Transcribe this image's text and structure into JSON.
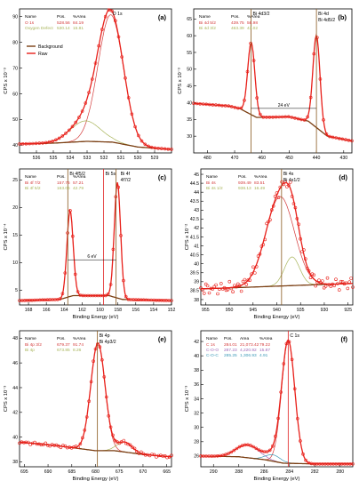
{
  "colors": {
    "raw": "#e8201a",
    "background": "#7a3e12",
    "fit_red": "#d43a3a",
    "fit_olive": "#a8b45a",
    "fit_purple": "#a06ab8",
    "fit_cyan": "#3e9ab8",
    "fit_blue": "#4060c0",
    "marker_dark": "#8a5a20",
    "marker_red": "#e02020",
    "axis": "#000000"
  },
  "chart_data": [
    {
      "id": "a",
      "type": "line",
      "panel_label": "(a)",
      "xlabel": "",
      "ylabel": "CPS x 10⁻³",
      "xlim": [
        537,
        528
      ],
      "ylim": [
        37,
        93
      ],
      "xticks": [
        536,
        535,
        534,
        533,
        532,
        531,
        530,
        529
      ],
      "yticks": [
        40,
        50,
        60,
        70,
        80,
        90
      ],
      "table": {
        "headers": [
          "Name",
          "Pos.",
          "%Area"
        ],
        "rows": [
          [
            "O 1s",
            "528.56",
            "84.19"
          ],
          [
            "Oxygen Defect",
            "530.14",
            "15.81"
          ]
        ],
        "row_colors": [
          "fit_red",
          "fit_olive"
        ]
      },
      "legend": [
        "Background",
        "Raw"
      ],
      "peak_labels": [
        {
          "x": 531.6,
          "text": "O 1s"
        }
      ],
      "background": [
        [
          537,
          40.5
        ],
        [
          535,
          40.8
        ],
        [
          533,
          41.5
        ],
        [
          531.5,
          41.2
        ],
        [
          530,
          39.3
        ],
        [
          528,
          38.4
        ]
      ],
      "components": [
        {
          "color": "fit_red",
          "center": 531.6,
          "sigma": 0.75,
          "amp": 49.5
        },
        {
          "color": "fit_olive",
          "center": 533.1,
          "sigma": 0.9,
          "amp": 8
        }
      ],
      "raw_points": 46,
      "markers": []
    },
    {
      "id": "b",
      "type": "line",
      "panel_label": "(b)",
      "xlabel": "",
      "ylabel": "CPS x 10⁻³",
      "xlim": [
        485,
        427
      ],
      "ylim": [
        25,
        68
      ],
      "xticks": [
        480,
        470,
        460,
        450,
        440,
        430
      ],
      "yticks": [
        30,
        35,
        40,
        45,
        50,
        55,
        60,
        65
      ],
      "table": {
        "headers": [
          "Name",
          "Pos.",
          "%Area"
        ],
        "rows": [
          [
            "Bi 4d 5/2",
            "439.75",
            "56.98"
          ],
          [
            "Bi 4d 3/2",
            "463.39",
            "43.02"
          ]
        ],
        "row_colors": [
          "fit_red",
          "fit_olive"
        ]
      },
      "legend": [],
      "peak_labels": [
        {
          "x": 464,
          "text": "Bi 4d3/2"
        },
        {
          "x": 440,
          "text": "Bi 4d"
        },
        {
          "x": 440,
          "text": "Bi 4d5/2"
        }
      ],
      "separation": {
        "x1": 464,
        "x2": 440,
        "y": 38.3,
        "text": "24 eV"
      },
      "background": [
        [
          485,
          39.8
        ],
        [
          472,
          39
        ],
        [
          468,
          38.2
        ],
        [
          462,
          35.6
        ],
        [
          450,
          35.8
        ],
        [
          443,
          34.5
        ],
        [
          436,
          30
        ],
        [
          427,
          28.6
        ]
      ],
      "components": [
        {
          "color": "fit_red",
          "center": 463.9,
          "sigma": 1.3,
          "amp": 21.5
        },
        {
          "color": "fit_red",
          "center": 440,
          "sigma": 1.3,
          "amp": 27.5
        }
      ],
      "raw_points": 50,
      "markers": [
        {
          "x": 464,
          "color": "marker_dark"
        },
        {
          "x": 440,
          "color": "marker_dark"
        }
      ]
    },
    {
      "id": "c",
      "type": "line",
      "panel_label": "(c)",
      "xlabel": "Binding Energy (eV)",
      "ylabel": "CPS x 10⁻⁴",
      "xlim": [
        169,
        152
      ],
      "ylim": [
        2.3,
        27
      ],
      "xticks": [
        168,
        166,
        164,
        162,
        160,
        158,
        156,
        154,
        152
      ],
      "yticks": [
        5,
        10,
        15,
        20,
        25
      ],
      "table": {
        "headers": [
          "Name",
          "Pos.",
          "%Area"
        ],
        "rows": [
          [
            "Bi 4f 7/2",
            "157.76",
            "57.21"
          ],
          [
            "Bi 4f 5/2",
            "163.06",
            "42.79"
          ]
        ],
        "row_colors": [
          "fit_red",
          "fit_olive"
        ]
      },
      "legend": [],
      "peak_labels": [
        {
          "x": 163.6,
          "text": "Bi 4f5/2"
        },
        {
          "x": 159.6,
          "text": "Bi 5s"
        },
        {
          "x": 157.9,
          "text": "Bi 4f"
        },
        {
          "x": 157.9,
          "text": "4f7/2"
        }
      ],
      "separation": {
        "x1": 163.6,
        "x2": 158.2,
        "y": 10.5,
        "text": "6 eV"
      },
      "background": [
        [
          169,
          3.1
        ],
        [
          164.5,
          3.3
        ],
        [
          163,
          4
        ],
        [
          159,
          4
        ],
        [
          157.5,
          3.3
        ],
        [
          152,
          3.1
        ]
      ],
      "components": [
        {
          "color": "fit_red",
          "center": 163.35,
          "sigma": 0.35,
          "amp": 15.6
        },
        {
          "color": "fit_red",
          "center": 158.05,
          "sigma": 0.35,
          "amp": 21
        }
      ],
      "raw_points": 60,
      "markers": [
        {
          "x": 163.6,
          "color": "marker_dark"
        },
        {
          "x": 159.6,
          "color": "marker_red"
        },
        {
          "x": 158.2,
          "color": "marker_dark"
        }
      ]
    },
    {
      "id": "d",
      "type": "line",
      "panel_label": "(d)",
      "xlabel": "Binding Energy (eV)",
      "ylabel": "CPS x 10⁻²",
      "xlim": [
        956,
        924
      ],
      "ylim": [
        37.7,
        45.3
      ],
      "xticks": [
        955,
        950,
        945,
        940,
        935,
        930,
        925
      ],
      "yticks": [
        38,
        38.5,
        39,
        39.5,
        40,
        40.5,
        41,
        41.5,
        42,
        42.5,
        43,
        43.5,
        44,
        44.5,
        45
      ],
      "table": {
        "headers": [
          "Name",
          "Pos.",
          "%Area"
        ],
        "rows": [
          [
            "Bi 4s",
            "939.49",
            "83.51"
          ],
          [
            "Bi 4s 1/2",
            "938.13",
            "16.49"
          ]
        ],
        "row_colors": [
          "fit_red",
          "fit_olive"
        ]
      },
      "legend": [],
      "peak_labels": [
        {
          "x": 939,
          "text": "Bi 4s"
        },
        {
          "x": 939,
          "text": "Bi 4s1/2"
        }
      ],
      "background": [
        [
          956,
          38.6
        ],
        [
          945,
          38.7
        ],
        [
          935,
          38.8
        ],
        [
          924,
          38.9
        ]
      ],
      "components": [
        {
          "color": "fit_red",
          "center": 939.3,
          "sigma": 3.0,
          "amp": 5.0
        },
        {
          "color": "fit_olive",
          "center": 936.8,
          "sigma": 1.6,
          "amp": 1.6
        }
      ],
      "raw_points": 90,
      "noise": 0.35,
      "markers": [
        {
          "x": 939,
          "color": "marker_dark"
        }
      ]
    },
    {
      "id": "e",
      "type": "line",
      "panel_label": "(e)",
      "xlabel": "Binding Energy (eV)",
      "ylabel": "CPS x 10⁻³",
      "xlim": [
        696,
        664
      ],
      "ylim": [
        37.6,
        48.6
      ],
      "xticks": [
        695,
        690,
        685,
        680,
        675,
        670,
        665
      ],
      "yticks": [
        38,
        40,
        42,
        44,
        46,
        48
      ],
      "table": {
        "headers": [
          "Name",
          "Pos.",
          "%Area"
        ],
        "rows": [
          [
            "Bi 4p 3/2",
            "679.37",
            "91.74"
          ],
          [
            "Bi 4p",
            "673.85",
            "8.26"
          ]
        ],
        "row_colors": [
          "fit_red",
          "fit_olive"
        ]
      },
      "legend": [],
      "peak_labels": [
        {
          "x": 679.6,
          "text": "Bi 4p"
        },
        {
          "x": 679.6,
          "text": "Bi 4p3/2"
        }
      ],
      "background": [
        [
          696,
          39.6
        ],
        [
          688,
          39.3
        ],
        [
          684,
          39.1
        ],
        [
          680,
          38.9
        ],
        [
          676,
          38.9
        ],
        [
          670,
          38.6
        ],
        [
          664,
          38.4
        ]
      ],
      "components": [
        {
          "color": "fit_red",
          "center": 679.5,
          "sigma": 1.5,
          "amp": 8.7
        },
        {
          "color": "fit_olive",
          "center": 673.9,
          "sigma": 1.6,
          "amp": 0.8
        }
      ],
      "raw_points": 70,
      "noise": 0.12,
      "markers": [
        {
          "x": 679.6,
          "color": "marker_dark"
        }
      ]
    },
    {
      "id": "f",
      "type": "line",
      "panel_label": "(f)",
      "xlabel": "Binding Energy (eV)",
      "ylabel": "CPS x 10⁻³",
      "xlim": [
        291,
        279
      ],
      "ylim": [
        24.5,
        43.5
      ],
      "xticks": [
        290,
        288,
        286,
        284,
        282,
        280
      ],
      "yticks": [
        26,
        28,
        30,
        32,
        34,
        36,
        38,
        40,
        42
      ],
      "table": {
        "headers": [
          "Name",
          "Pos.",
          "Area",
          "%Area"
        ],
        "rows": [
          [
            "C 1s",
            "284.01",
            "21,073.42",
            "79.22"
          ],
          [
            "C-O-O",
            "287.23",
            "4,220.92",
            "15.87"
          ],
          [
            "C-O-C",
            "285.25",
            "1,306.93",
            "4.91"
          ]
        ],
        "row_colors": [
          "fit_red",
          "fit_purple",
          "fit_cyan"
        ]
      },
      "legend": [],
      "peak_labels": [
        {
          "x": 284.1,
          "text": "C 1s"
        }
      ],
      "background": [
        [
          291,
          26
        ],
        [
          288,
          25.9
        ],
        [
          286,
          25.5
        ],
        [
          284.5,
          25
        ],
        [
          282,
          24.9
        ],
        [
          279,
          24.9
        ]
      ],
      "components": [
        {
          "color": "fit_red",
          "center": 284.1,
          "sigma": 0.52,
          "amp": 17.1
        },
        {
          "color": "fit_purple",
          "center": 287.3,
          "sigma": 0.9,
          "amp": 1.8
        },
        {
          "color": "fit_cyan",
          "center": 285.3,
          "sigma": 0.6,
          "amp": 0.9
        }
      ],
      "raw_points": 55,
      "markers": [
        {
          "x": 284.1,
          "color": "marker_red"
        }
      ]
    }
  ]
}
